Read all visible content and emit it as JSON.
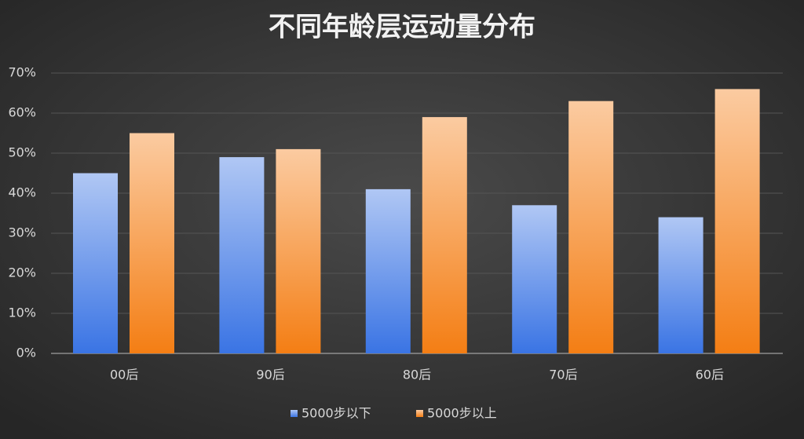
{
  "chart_data": {
    "type": "bar",
    "title": "不同年龄层运动量分布",
    "categories": [
      "00后",
      "90后",
      "80后",
      "70后",
      "60后"
    ],
    "series": [
      {
        "name": "5000步以下",
        "color": "#3a74e4",
        "values": [
          45,
          49,
          41,
          37,
          34
        ]
      },
      {
        "name": "5000步以上",
        "color": "#f47e14",
        "values": [
          55,
          51,
          59,
          63,
          66
        ]
      }
    ],
    "ylim": [
      0,
      70
    ],
    "yticks": [
      {
        "value": 0,
        "label": "0%"
      },
      {
        "value": 10,
        "label": "10%"
      },
      {
        "value": 20,
        "label": "20%"
      },
      {
        "value": 30,
        "label": "30%"
      },
      {
        "value": 40,
        "label": "40%"
      },
      {
        "value": 50,
        "label": "50%"
      },
      {
        "value": 60,
        "label": "60%"
      },
      {
        "value": 70,
        "label": "70%"
      }
    ],
    "grid": true,
    "legend": "bottom"
  }
}
